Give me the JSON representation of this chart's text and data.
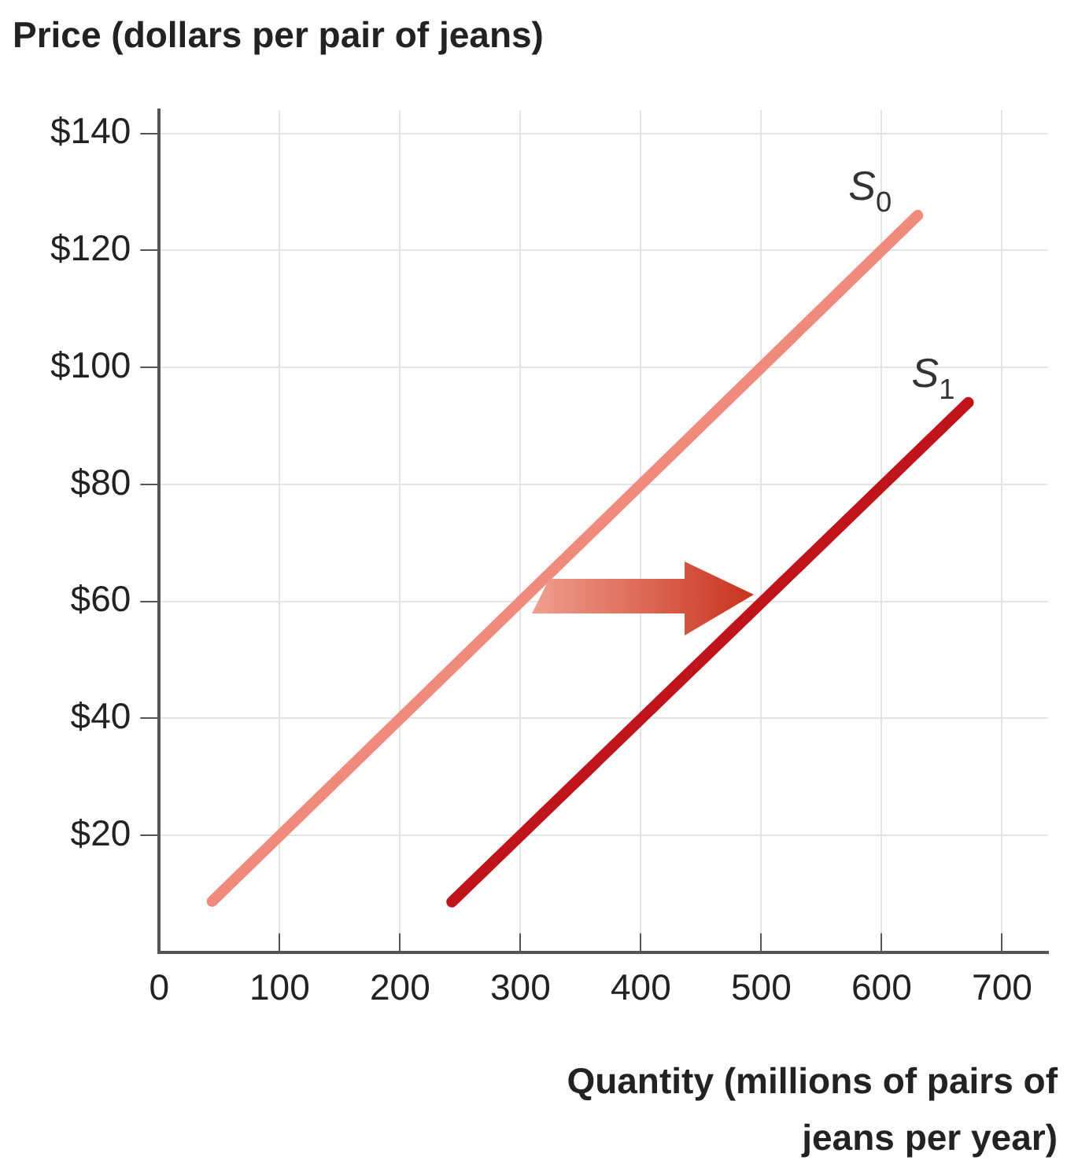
{
  "chart_data": {
    "type": "line",
    "ylabel": "Price (dollars per pair of jeans)",
    "xlabel": "Quantity (millions of pairs of jeans per year)",
    "series": [
      {
        "name": "S$_{0}$",
        "color": "#f08a7c",
        "x": [
          44,
          630
        ],
        "values": [
          8.7,
          126
        ]
      },
      {
        "name": "S$_{1}$",
        "color": "#c0141c",
        "x": [
          243,
          672
        ],
        "values": [
          8.6,
          94
        ]
      }
    ],
    "xlim": [
      0,
      738
    ],
    "xticks": [
      {
        "value": 0,
        "label": "0"
      },
      100,
      200,
      300,
      400,
      500,
      600,
      700
    ],
    "ylim": [
      0,
      144
    ],
    "yticks": [
      {
        "value": 20,
        "label": "$20"
      },
      {
        "value": 40,
        "label": "$40"
      },
      {
        "value": 60,
        "label": "$60"
      },
      {
        "value": 80,
        "label": "$80"
      },
      {
        "value": 100,
        "label": "$100"
      },
      {
        "value": 120,
        "label": "$120"
      },
      {
        "value": 140,
        "label": "$140"
      }
    ],
    "grid": true,
    "marker": "none",
    "line_style": "solid",
    "legend": false
  }
}
